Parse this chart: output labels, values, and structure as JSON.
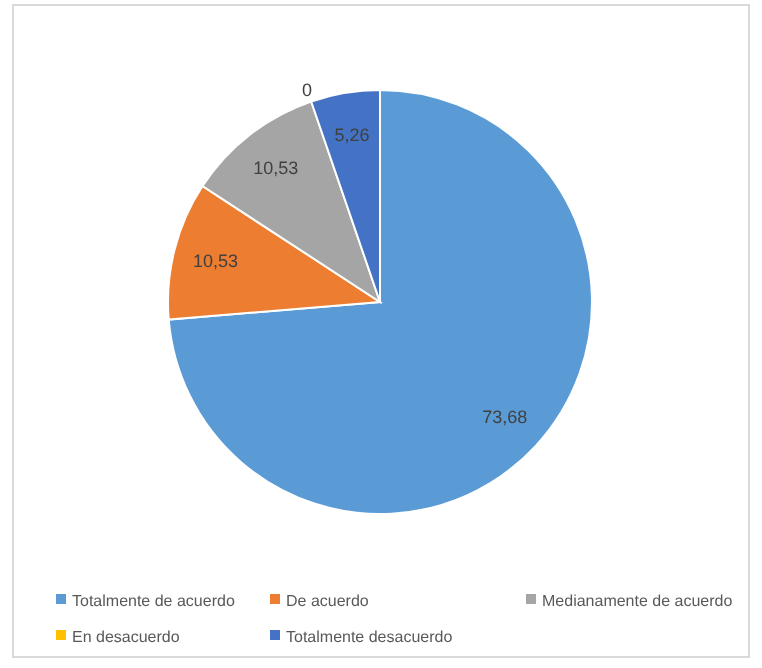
{
  "chart_data": {
    "type": "pie",
    "categories": [
      "Totalmente de acuerdo",
      "De acuerdo",
      "Medianamente de acuerdo",
      "En desacuerdo",
      "Totalmente desacuerdo"
    ],
    "values": [
      73.68,
      10.53,
      10.53,
      0,
      5.26
    ],
    "value_labels": [
      "73,68",
      "10,53",
      "10,53",
      "0",
      "5,26"
    ],
    "colors": [
      "#5b9bd5",
      "#ed7d31",
      "#a5a5a5",
      "#ffc000",
      "#4472c4"
    ],
    "legend": "bottom"
  }
}
